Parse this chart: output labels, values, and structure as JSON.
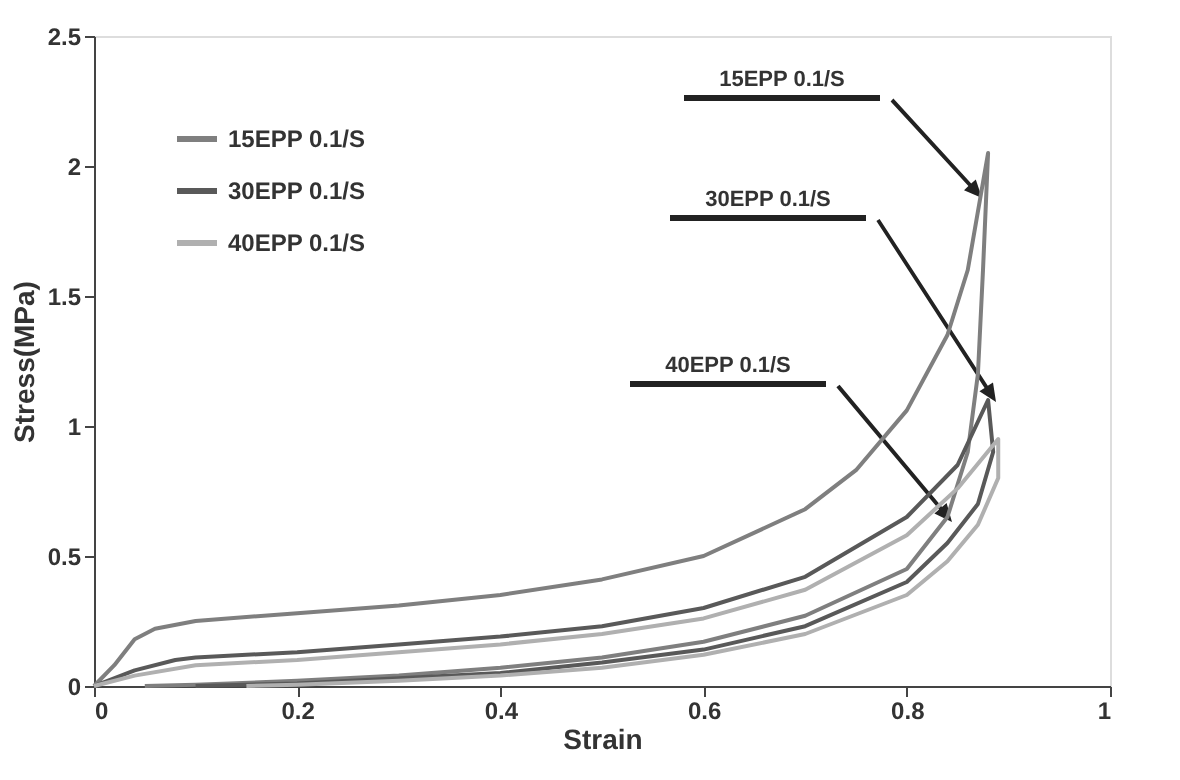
{
  "chart_data": {
    "type": "line",
    "xlabel": "Strain",
    "ylabel": "Stress(MPa)",
    "xlim": [
      0,
      1
    ],
    "ylim": [
      0,
      2.5
    ],
    "xticks": [
      0,
      0.2,
      0.4,
      0.6,
      0.8,
      1
    ],
    "yticks": [
      0,
      0.5,
      1,
      1.5,
      2,
      2.5
    ],
    "grid": false,
    "legend": "top left",
    "marker": "none",
    "line_style": "solid",
    "series": [
      {
        "name": "15EPP 0.1/S",
        "color": "#7f7f7f",
        "x": [
          0,
          0.02,
          0.04,
          0.06,
          0.1,
          0.2,
          0.3,
          0.4,
          0.5,
          0.6,
          0.7,
          0.75,
          0.8,
          0.84,
          0.86,
          0.88,
          0.875,
          0.87,
          0.86,
          0.84,
          0.8,
          0.7,
          0.6,
          0.5,
          0.4,
          0.3,
          0.2,
          0.1,
          0.05
        ],
        "values": [
          0,
          0.08,
          0.18,
          0.22,
          0.25,
          0.28,
          0.31,
          0.35,
          0.41,
          0.5,
          0.68,
          0.83,
          1.06,
          1.35,
          1.6,
          2.05,
          1.6,
          1.2,
          0.9,
          0.65,
          0.45,
          0.27,
          0.17,
          0.11,
          0.07,
          0.04,
          0.02,
          0.005,
          0
        ]
      },
      {
        "name": "30EPP 0.1/S",
        "color": "#595959",
        "x": [
          0,
          0.04,
          0.08,
          0.1,
          0.2,
          0.3,
          0.4,
          0.5,
          0.6,
          0.7,
          0.8,
          0.85,
          0.88,
          0.885,
          0.87,
          0.84,
          0.8,
          0.7,
          0.6,
          0.5,
          0.4,
          0.3,
          0.2,
          0.1
        ],
        "values": [
          0,
          0.06,
          0.1,
          0.11,
          0.13,
          0.16,
          0.19,
          0.23,
          0.3,
          0.42,
          0.65,
          0.85,
          1.1,
          0.9,
          0.7,
          0.55,
          0.4,
          0.23,
          0.14,
          0.09,
          0.05,
          0.03,
          0.01,
          0
        ]
      },
      {
        "name": "40EPP 0.1/S",
        "color": "#b0b0b0",
        "x": [
          0,
          0.04,
          0.1,
          0.2,
          0.3,
          0.4,
          0.5,
          0.6,
          0.7,
          0.8,
          0.85,
          0.89,
          0.89,
          0.87,
          0.84,
          0.8,
          0.7,
          0.6,
          0.5,
          0.4,
          0.3,
          0.2,
          0.15
        ],
        "values": [
          0,
          0.04,
          0.08,
          0.1,
          0.13,
          0.16,
          0.2,
          0.26,
          0.37,
          0.58,
          0.76,
          0.95,
          0.8,
          0.62,
          0.48,
          0.35,
          0.2,
          0.12,
          0.07,
          0.04,
          0.02,
          0.005,
          0
        ]
      }
    ],
    "annotations": [
      "15EPP 0.1/S",
      "30EPP 0.1/S",
      "40EPP 0.1/S"
    ]
  }
}
